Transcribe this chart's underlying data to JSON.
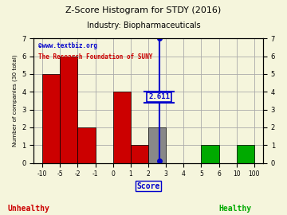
{
  "title": "Z-Score Histogram for STDY (2016)",
  "subtitle": "Industry: Biopharmaceuticals",
  "xlabel": "Score",
  "ylabel": "Number of companies (30 total)",
  "watermark1": "©www.textbiz.org",
  "watermark2": "The Research Foundation of SUNY",
  "tick_labels": [
    "-10",
    "-5",
    "-2",
    "-1",
    "0",
    "1",
    "2",
    "3",
    "4",
    "5",
    "6",
    "10",
    "100"
  ],
  "counts": [
    5,
    6,
    2,
    0,
    4,
    1,
    2,
    0,
    0,
    1,
    0,
    1
  ],
  "bar_colors": [
    "#cc0000",
    "#cc0000",
    "#cc0000",
    "#cc0000",
    "#cc0000",
    "#cc0000",
    "#888888",
    "#ffffff",
    "#ffffff",
    "#00aa00",
    "#00aa00",
    "#00aa00"
  ],
  "bar_edgecolor": "#000000",
  "zscore_value": 2.611,
  "zscore_label": "2.611",
  "ylim": [
    0,
    7
  ],
  "yticks": [
    0,
    1,
    2,
    3,
    4,
    5,
    6,
    7
  ],
  "unhealthy_label": "Unhealthy",
  "healthy_label": "Healthy",
  "unhealthy_color": "#cc0000",
  "healthy_color": "#00aa00",
  "score_label_color": "#0000cc",
  "grid_color": "#aaaaaa",
  "bg_color": "#f5f5dc",
  "title_color": "#000000",
  "subtitle_color": "#000000",
  "watermark1_color": "#0000cc",
  "watermark2_color": "#cc0000",
  "zscore_tick_index": 6.611
}
